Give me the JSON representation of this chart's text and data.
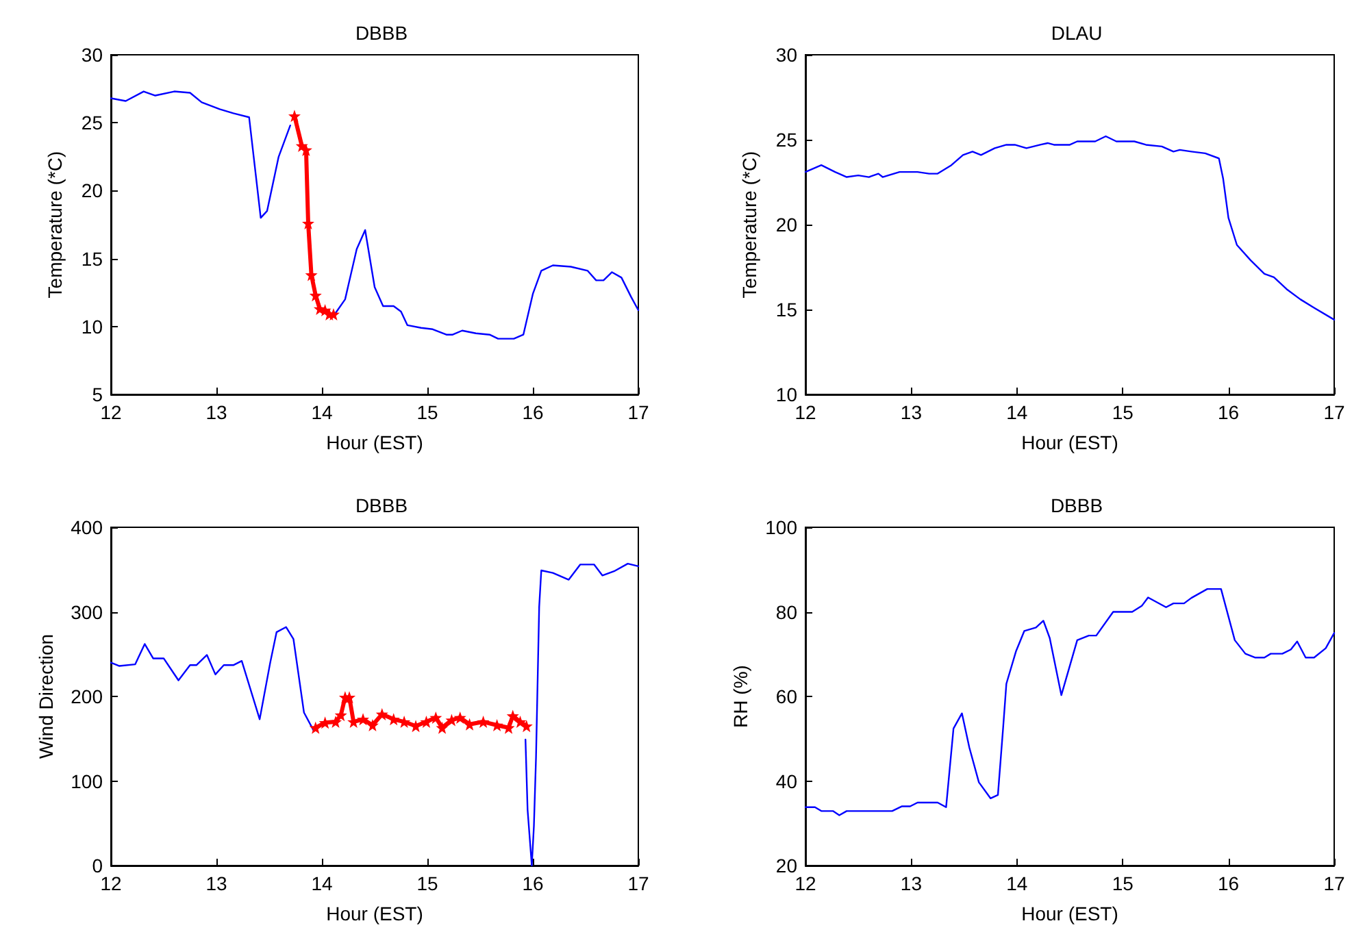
{
  "chart_data": [
    {
      "type": "line",
      "title": "DBBB",
      "xlabel": "Hour (EST)",
      "ylabel": "Temperature (*C)",
      "xlim": [
        12,
        17
      ],
      "xticks": [
        12,
        13,
        14,
        15,
        16,
        17
      ],
      "ylim": [
        5,
        30
      ],
      "yticks": [
        5,
        10,
        15,
        20,
        25,
        30
      ],
      "series": [
        {
          "color": "#0000ff",
          "marker": "none",
          "x": [
            12,
            12.14,
            12.31,
            12.42,
            12.6,
            12.75,
            12.86,
            13.03,
            13.16,
            13.31,
            13.42,
            13.48,
            13.59,
            13.7,
            13.72,
            14.13,
            14.22,
            14.33,
            14.41,
            14.5,
            14.58,
            14.68,
            14.75,
            14.81,
            14.94,
            15.05,
            15.18,
            15.24,
            15.33,
            15.46,
            15.59,
            15.67,
            15.82,
            15.91,
            16.0,
            16.08,
            16.19,
            16.36,
            16.52,
            16.6,
            16.67,
            16.75,
            16.84,
            16.93,
            17
          ],
          "values": [
            26.8,
            26.6,
            27.3,
            27.0,
            27.3,
            27.2,
            26.5,
            26.0,
            25.7,
            25.4,
            18.0,
            18.5,
            22.5,
            24.8,
            null,
            11.0,
            12.0,
            15.7,
            17.1,
            12.9,
            11.5,
            11.5,
            11.1,
            10.1,
            9.9,
            9.8,
            9.4,
            9.4,
            9.7,
            9.5,
            9.4,
            9.1,
            9.1,
            9.4,
            12.4,
            14.1,
            14.5,
            14.4,
            14.1,
            13.4,
            13.4,
            14.0,
            13.6,
            12.2,
            11.2
          ]
        },
        {
          "color": "#ff0000",
          "marker": "star",
          "x": [
            13.74,
            13.81,
            13.85,
            13.87,
            13.9,
            13.94,
            13.98,
            14.03,
            14.07,
            14.11
          ],
          "values": [
            25.5,
            23.3,
            23.0,
            17.6,
            13.8,
            12.3,
            11.3,
            11.2,
            10.9,
            10.9
          ]
        }
      ]
    },
    {
      "type": "line",
      "title": "DLAU",
      "xlabel": "Hour (EST)",
      "ylabel": "Temperature (*C)",
      "xlim": [
        12,
        17
      ],
      "xticks": [
        12,
        13,
        14,
        15,
        16,
        17
      ],
      "ylim": [
        10,
        30
      ],
      "yticks": [
        10,
        15,
        20,
        25,
        30
      ],
      "series": [
        {
          "color": "#0000ff",
          "marker": "none",
          "x": [
            12,
            12.15,
            12.28,
            12.39,
            12.5,
            12.6,
            12.69,
            12.73,
            12.89,
            12.97,
            13.06,
            13.17,
            13.25,
            13.38,
            13.49,
            13.58,
            13.66,
            13.79,
            13.9,
            13.98,
            14.09,
            14.22,
            14.29,
            14.35,
            14.5,
            14.57,
            14.74,
            14.84,
            14.94,
            15.11,
            15.22,
            15.37,
            15.48,
            15.54,
            15.65,
            15.78,
            15.91,
            15.95,
            16.0,
            16.08,
            16.21,
            16.34,
            16.43,
            16.55,
            16.68,
            16.81,
            17
          ],
          "values": [
            23.1,
            23.5,
            23.1,
            22.8,
            22.9,
            22.8,
            23.0,
            22.8,
            23.1,
            23.1,
            23.1,
            23.0,
            23.0,
            23.5,
            24.1,
            24.3,
            24.1,
            24.5,
            24.7,
            24.7,
            24.5,
            24.7,
            24.8,
            24.7,
            24.7,
            24.9,
            24.9,
            25.2,
            24.9,
            24.9,
            24.7,
            24.6,
            24.3,
            24.4,
            24.3,
            24.2,
            23.9,
            22.7,
            20.4,
            18.8,
            17.9,
            17.1,
            16.9,
            16.2,
            15.6,
            15.1,
            14.4
          ]
        }
      ]
    },
    {
      "type": "line",
      "title": "DBBB",
      "xlabel": "Hour (EST)",
      "ylabel": "Wind Direction",
      "xlim": [
        12,
        17
      ],
      "xticks": [
        12,
        13,
        14,
        15,
        16,
        17
      ],
      "ylim": [
        0,
        400
      ],
      "yticks": [
        0,
        100,
        200,
        300,
        400
      ],
      "series": [
        {
          "color": "#0000ff",
          "marker": "none",
          "x": [
            12,
            12.08,
            12.23,
            12.32,
            12.4,
            12.5,
            12.64,
            12.75,
            12.81,
            12.91,
            12.99,
            13.07,
            13.16,
            13.24,
            13.41,
            13.51,
            13.57,
            13.66,
            13.73,
            13.83,
            13.92,
            13.94,
            15.93,
            15.95,
            15.99,
            16.01,
            16.03,
            16.06,
            16.08,
            16.19,
            16.34,
            16.45,
            16.58,
            16.66,
            16.77,
            16.9,
            17
          ],
          "values": [
            240,
            236,
            238,
            262,
            245,
            245,
            219,
            237,
            237,
            249,
            226,
            237,
            237,
            242,
            173,
            240,
            276,
            282,
            268,
            181,
            160,
            null,
            149,
            66,
            0,
            47,
            128,
            306,
            349,
            346,
            338,
            356,
            356,
            343,
            348,
            357,
            354
          ]
        },
        {
          "color": "#ff0000",
          "marker": "star",
          "x": [
            13.94,
            14.03,
            14.13,
            14.18,
            14.22,
            14.26,
            14.3,
            14.39,
            14.48,
            14.57,
            14.68,
            14.78,
            14.89,
            14.99,
            15.08,
            15.14,
            15.23,
            15.31,
            15.4,
            15.53,
            15.66,
            15.77,
            15.81,
            15.88,
            15.94
          ],
          "values": [
            163,
            169,
            170,
            178,
            199,
            199,
            170,
            173,
            166,
            179,
            173,
            170,
            165,
            170,
            175,
            163,
            172,
            175,
            167,
            170,
            166,
            163,
            177,
            170,
            165
          ]
        }
      ]
    },
    {
      "type": "line",
      "title": "DBBB",
      "xlabel": "Hour (EST)",
      "ylabel": "RH (%)",
      "xlim": [
        12,
        17
      ],
      "xticks": [
        12,
        13,
        14,
        15,
        16,
        17
      ],
      "ylim": [
        20,
        100
      ],
      "yticks": [
        20,
        40,
        60,
        80,
        100
      ],
      "series": [
        {
          "color": "#0000ff",
          "marker": "none",
          "x": [
            12,
            12.09,
            12.15,
            12.26,
            12.32,
            12.39,
            12.58,
            12.82,
            12.91,
            12.99,
            13.06,
            13.25,
            13.33,
            13.4,
            13.48,
            13.55,
            13.64,
            13.75,
            13.82,
            13.87,
            13.9,
            13.99,
            14.07,
            14.18,
            14.25,
            14.31,
            14.42,
            14.57,
            14.68,
            14.75,
            14.91,
            15.09,
            15.18,
            15.24,
            15.41,
            15.48,
            15.58,
            15.65,
            15.8,
            15.93,
            16.06,
            16.16,
            16.25,
            16.34,
            16.4,
            16.51,
            16.59,
            16.65,
            16.73,
            16.81,
            16.92,
            17
          ],
          "values": [
            33.8,
            33.8,
            32.9,
            32.9,
            31.9,
            32.9,
            32.9,
            32.9,
            34.0,
            34.0,
            34.9,
            34.9,
            33.8,
            52.4,
            56.0,
            47.9,
            39.7,
            35.9,
            36.7,
            52.8,
            63.0,
            70.6,
            75.5,
            76.3,
            77.9,
            73.8,
            60.3,
            73.3,
            74.4,
            74.4,
            80,
            80,
            81.4,
            83.4,
            81.1,
            82,
            82,
            83.3,
            85.4,
            85.4,
            73.3,
            70.1,
            69.2,
            69.2,
            70.1,
            70.1,
            71.1,
            73.0,
            69.2,
            69.2,
            71.4,
            75.0
          ]
        }
      ]
    }
  ]
}
